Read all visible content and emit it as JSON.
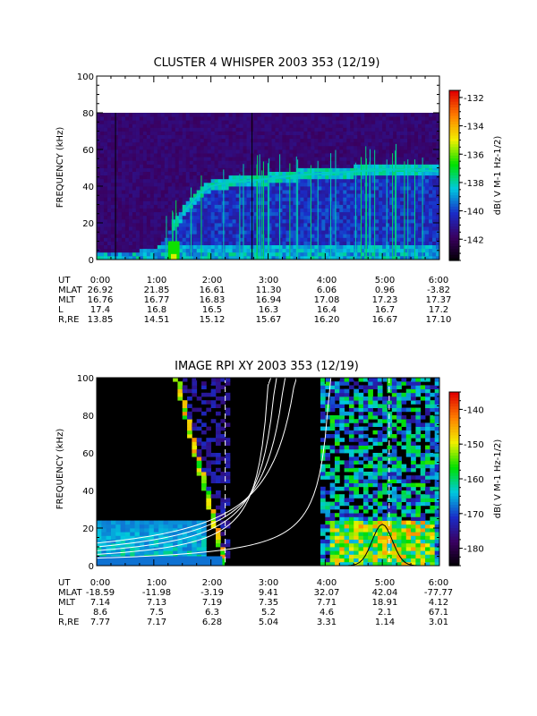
{
  "chart_data": [
    {
      "type": "heatmap",
      "title": "CLUSTER 4 WHISPER 2003 353 (12/19)",
      "ylabel": "FREQUENCY (kHz)",
      "ylim": [
        0,
        100
      ],
      "yticks": [
        "0",
        "20",
        "40",
        "60",
        "80",
        "100"
      ],
      "xlim": [
        0,
        6
      ],
      "xticks": [
        "0:00",
        "1:00",
        "2:00",
        "3:00",
        "4:00",
        "5:00",
        "6:00"
      ],
      "colorbar": {
        "label": "dB( V M-1 Hz-1/2)",
        "range": [
          -143.5,
          -131.5
        ],
        "ticks": [
          "-132",
          "-134",
          "-136",
          "-138",
          "-140",
          "-142"
        ],
        "colors": [
          "#000000",
          "#3a0060",
          "#1a2cc8",
          "#00c8e0",
          "#00e000",
          "#f0f000",
          "#ff8000",
          "#e00000"
        ]
      },
      "data_max_freq_khz": 80,
      "vertical_markers_hours": [
        0.33,
        2.72
      ],
      "emission_band_khz": [
        [
          0.0,
          3
        ],
        [
          0.5,
          4
        ],
        [
          1.0,
          6
        ],
        [
          1.2,
          12
        ],
        [
          1.5,
          25
        ],
        [
          1.8,
          36
        ],
        [
          2.0,
          40
        ],
        [
          2.3,
          42
        ],
        [
          2.7,
          43
        ],
        [
          3.0,
          44
        ],
        [
          3.5,
          46
        ],
        [
          4.0,
          47
        ],
        [
          4.5,
          48
        ],
        [
          5.0,
          49
        ],
        [
          5.5,
          49
        ],
        [
          6.0,
          48
        ]
      ],
      "ephemeris": [
        {
          "label": "UT",
          "values": [
            "0:00",
            "1:00",
            "2:00",
            "3:00",
            "4:00",
            "5:00",
            "6:00"
          ]
        },
        {
          "label": "MLAT",
          "values": [
            "26.92",
            "21.85",
            "16.61",
            "11.30",
            "6.06",
            "0.96",
            "-3.82"
          ]
        },
        {
          "label": "MLT",
          "values": [
            "16.76",
            "16.77",
            "16.83",
            "16.94",
            "17.08",
            "17.23",
            "17.37"
          ]
        },
        {
          "label": "L",
          "values": [
            "17.4",
            "16.8",
            "16.5",
            "16.3",
            "16.4",
            "16.7",
            "17.2"
          ]
        },
        {
          "label": "R,RE",
          "values": [
            "13.85",
            "14.51",
            "15.12",
            "15.67",
            "16.20",
            "16.67",
            "17.10"
          ]
        }
      ]
    },
    {
      "type": "heatmap",
      "title": "IMAGE RPI XY 2003 353 (12/19)",
      "ylabel": "FREQUENCY (kHz)",
      "ylim": [
        0,
        100
      ],
      "yticks": [
        "0",
        "20",
        "40",
        "60",
        "80",
        "100"
      ],
      "xlim": [
        0,
        6
      ],
      "xticks": [
        "0:00",
        "1:00",
        "2:00",
        "3:00",
        "4:00",
        "5:00",
        "6:00"
      ],
      "colorbar": {
        "label": "dB( V M-1 Hz-1/2)",
        "range": [
          -185,
          -135
        ],
        "ticks": [
          "-140",
          "-150",
          "-160",
          "-170",
          "-180"
        ],
        "colors": [
          "#000000",
          "#3a0060",
          "#1a2cc8",
          "#00c8e0",
          "#00e000",
          "#f0f000",
          "#ff8000",
          "#e00000"
        ]
      },
      "vertical_dashed_hours": [
        2.25,
        5.12
      ],
      "cutoff_curves_khz": [
        {
          "at_0h": 12,
          "asymptote_hours": 3.95
        },
        {
          "at_0h": 10,
          "asymptote_hours": 3.65
        },
        {
          "at_0h": 8,
          "asymptote_hours": 3.4
        },
        {
          "at_0h": 6,
          "asymptote_hours": 3.2
        },
        {
          "at_0h": 4,
          "asymptote_hours": 4.25
        }
      ],
      "ephemeris": [
        {
          "label": "UT",
          "values": [
            "0:00",
            "1:00",
            "2:00",
            "3:00",
            "4:00",
            "5:00",
            "6:00"
          ]
        },
        {
          "label": "MLAT",
          "values": [
            "-18.59",
            "-11.98",
            "-3.19",
            "9.41",
            "32.07",
            "42.04",
            "-77.77"
          ]
        },
        {
          "label": "MLT",
          "values": [
            "7.14",
            "7.13",
            "7.19",
            "7.35",
            "7.71",
            "18.91",
            "4.12"
          ]
        },
        {
          "label": "L",
          "values": [
            "8.6",
            "7.5",
            "6.3",
            "5.2",
            "4.6",
            "2.1",
            "67.1"
          ]
        },
        {
          "label": "R,RE",
          "values": [
            "7.77",
            "7.17",
            "6.28",
            "5.04",
            "3.31",
            "1.14",
            "3.01"
          ]
        }
      ]
    }
  ]
}
